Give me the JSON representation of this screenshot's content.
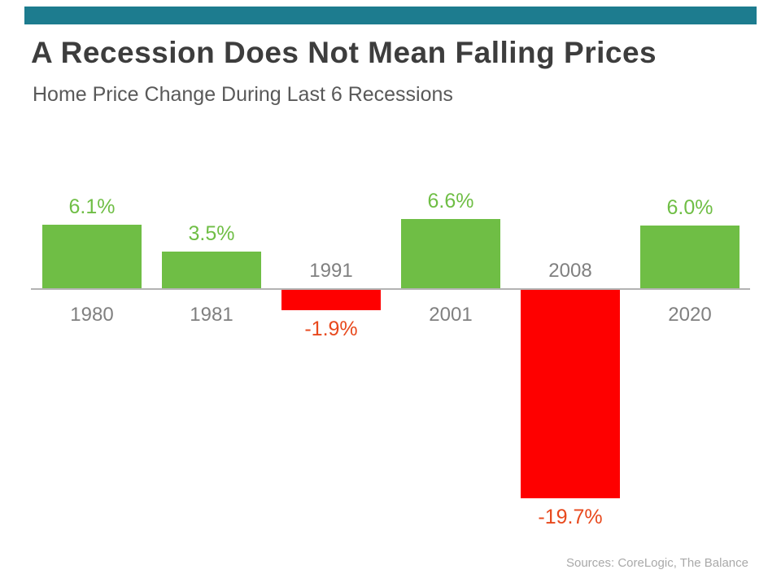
{
  "accent_color": "#1d7c8f",
  "header": {
    "title": "A Recession Does Not Mean Falling Prices",
    "subtitle": "Home Price Change During Last 6 Recessions"
  },
  "chart_data": {
    "type": "bar",
    "title": "A Recession Does Not Mean Falling Prices",
    "subtitle": "Home Price Change During Last 6 Recessions",
    "categories": [
      "1980",
      "1981",
      "1991",
      "2001",
      "2008",
      "2020"
    ],
    "values": [
      6.1,
      3.5,
      -1.9,
      6.6,
      -19.7,
      6.0
    ],
    "value_labels": [
      "6.1%",
      "3.5%",
      "-1.9%",
      "6.6%",
      "-19.7%",
      "6.0%"
    ],
    "xlabel": "",
    "ylabel": "",
    "ylim": [
      -22,
      8
    ],
    "grid": false,
    "legend": false,
    "positive_color": "#6fbe45",
    "negative_color": "#fe0000",
    "positive_label_color": "#6fbe45",
    "negative_label_color": "#e8491d",
    "axis_color": "#b3b3b3",
    "year_label_color": "#808080"
  },
  "footer": {
    "sources": "Sources: CoreLogic, The Balance"
  }
}
